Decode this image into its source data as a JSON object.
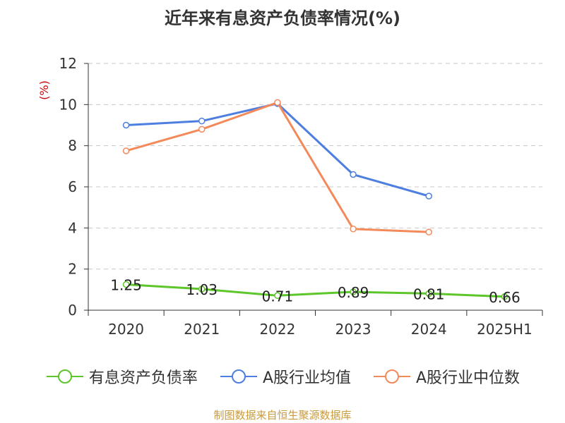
{
  "title": "近年来有息资产负债率情况(%)",
  "source": "制图数据来自恒生聚源数据库",
  "chart_data": {
    "type": "line",
    "title": "近年来有息资产负债率情况(%)",
    "unit_label": "(%)",
    "categories": [
      "2020",
      "2021",
      "2022",
      "2023",
      "2024",
      "2025H1"
    ],
    "ylim": [
      0,
      12
    ],
    "yticks": [
      0,
      2,
      4,
      6,
      8,
      10,
      12
    ],
    "grid": true,
    "legend_position": "bottom",
    "series": [
      {
        "name": "有息资产负债率",
        "color": "#5cc62a",
        "values": [
          1.25,
          1.03,
          0.71,
          0.89,
          0.81,
          0.66
        ],
        "labels": [
          "1.25",
          "1.03",
          "0.71",
          "0.89",
          "0.81",
          "0.66"
        ]
      },
      {
        "name": "A股行业均值",
        "color": "#4e7fe0",
        "values": [
          9.0,
          9.2,
          10.05,
          6.6,
          5.55,
          null
        ]
      },
      {
        "name": "A股行业中位数",
        "color": "#f4895a",
        "values": [
          7.75,
          8.8,
          10.1,
          3.95,
          3.8,
          null
        ]
      }
    ]
  }
}
